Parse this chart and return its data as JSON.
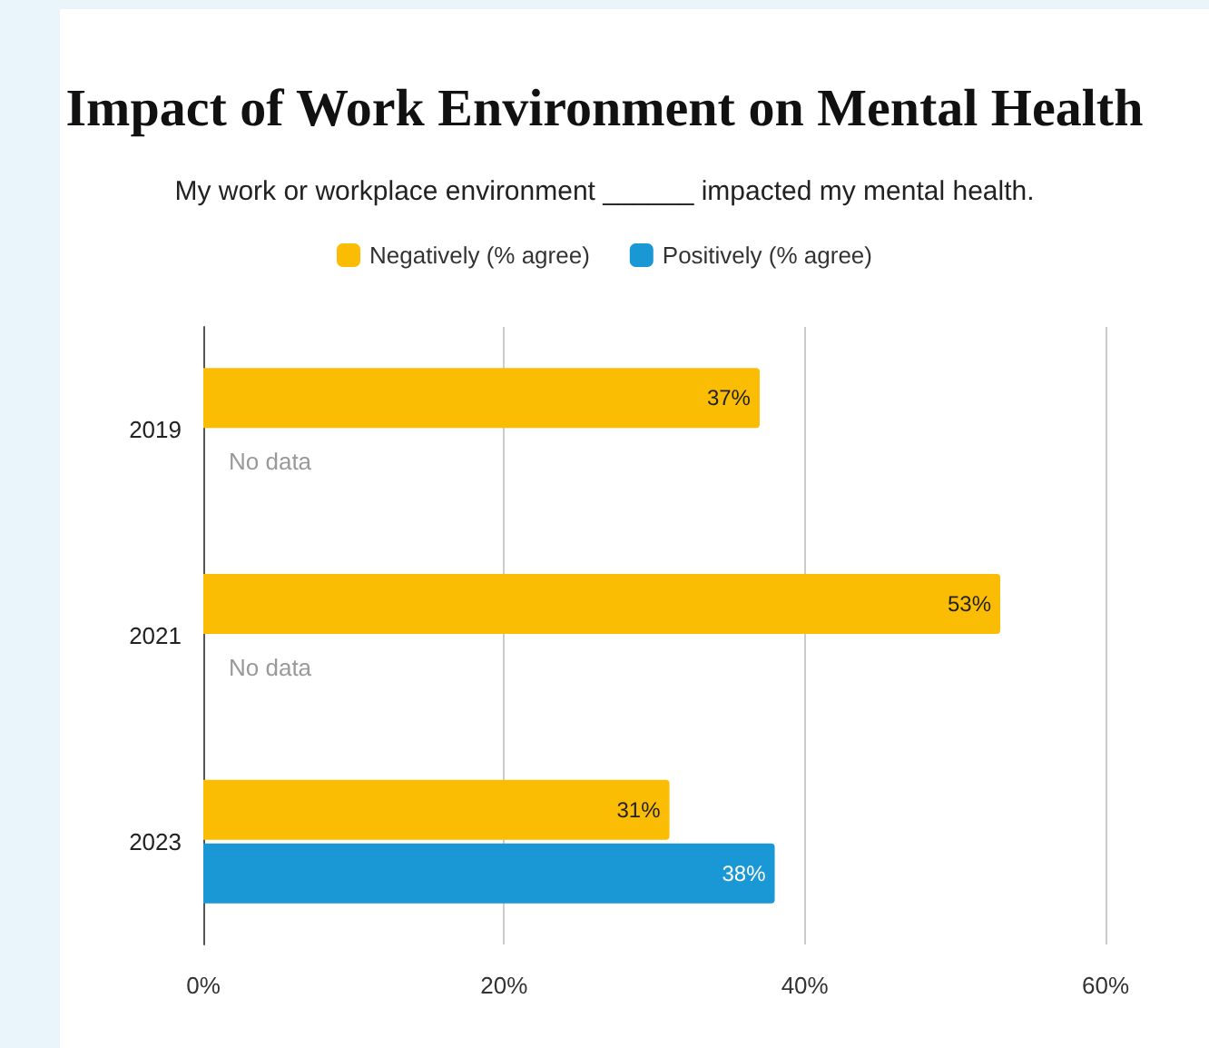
{
  "chart_data": {
    "type": "bar",
    "orientation": "horizontal",
    "title": "Impact of Work Environment on Mental Health",
    "subtitle": "My work or workplace environment ______ impacted my mental health.",
    "categories": [
      "2019",
      "2021",
      "2023"
    ],
    "series": [
      {
        "name": "Negatively (% agree)",
        "color": "#fbbc04",
        "values": [
          37,
          53,
          31
        ],
        "value_labels": [
          "37%",
          "53%",
          "31%"
        ]
      },
      {
        "name": "Positively (% agree)",
        "color": "#1a98d5",
        "values": [
          null,
          null,
          38
        ],
        "value_labels": [
          null,
          null,
          "38%"
        ]
      }
    ],
    "annotations": [
      {
        "text": "No data",
        "x": 0,
        "y": "2019"
      },
      {
        "text": "No data",
        "x": 0,
        "y": "2021"
      }
    ],
    "xlim": [
      0,
      60
    ],
    "xticks": [
      {
        "value": 0,
        "label": "0%"
      },
      {
        "value": 20,
        "label": "20%"
      },
      {
        "value": 40,
        "label": "40%"
      },
      {
        "value": 60,
        "label": "60%"
      }
    ],
    "grid": "x",
    "legend": "top"
  }
}
